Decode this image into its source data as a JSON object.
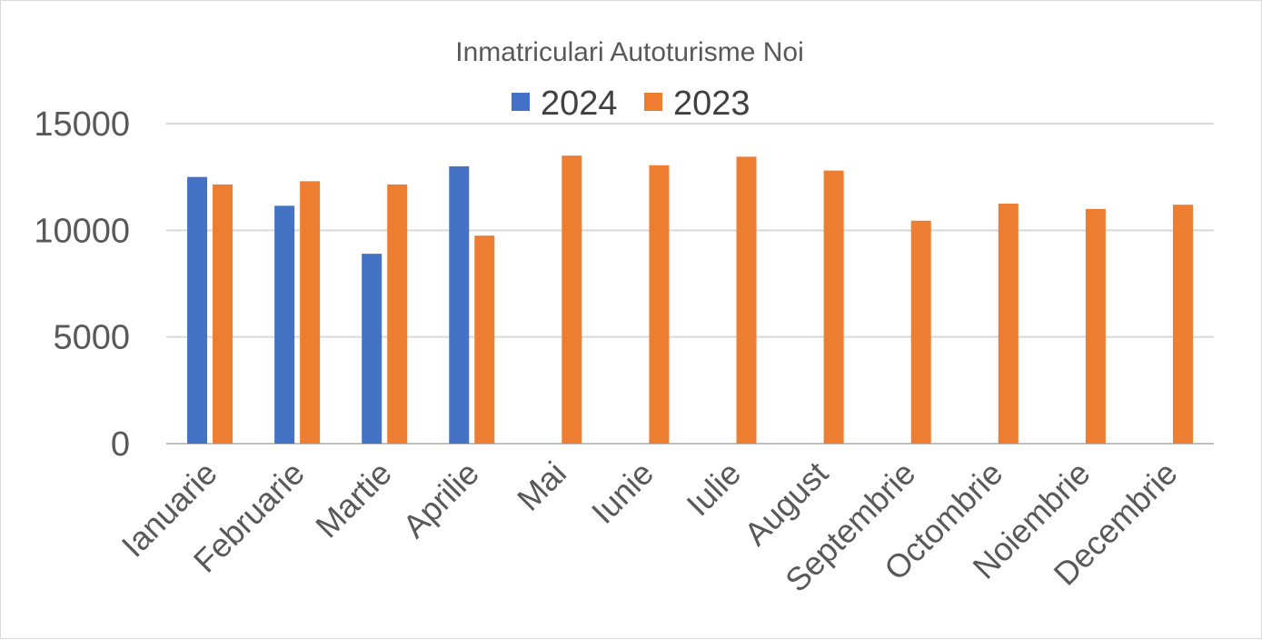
{
  "chart_data": {
    "type": "bar",
    "title": "Inmatriculari Autoturisme Noi",
    "categories": [
      "Ianuarie",
      "Februarie",
      "Martie",
      "Aprilie",
      "Mai",
      "Iunie",
      "Iulie",
      "August",
      "Septembrie",
      "Octombrie",
      "Noiembrie",
      "Decembrie"
    ],
    "series": [
      {
        "name": "2024",
        "color": "#4472C4",
        "values": [
          12500,
          11150,
          8900,
          13000,
          null,
          null,
          null,
          null,
          null,
          null,
          null,
          null
        ]
      },
      {
        "name": "2023",
        "color": "#ED7D31",
        "values": [
          12150,
          12300,
          12150,
          9750,
          13500,
          13050,
          13450,
          12800,
          10450,
          11250,
          11000,
          11200
        ]
      }
    ],
    "ylim": [
      0,
      15000
    ],
    "yticks": [
      0,
      5000,
      10000,
      15000
    ],
    "grid": true,
    "legend_position": "top"
  }
}
